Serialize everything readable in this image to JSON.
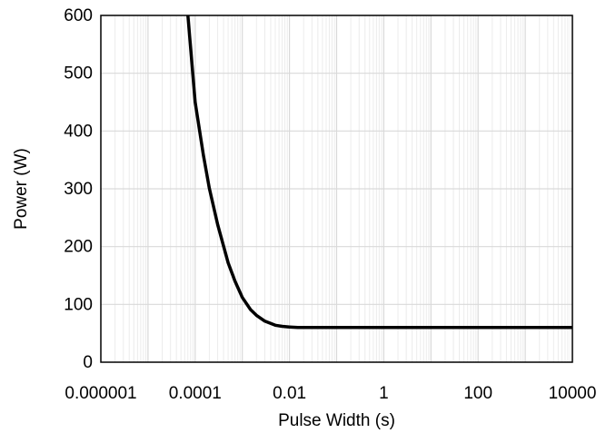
{
  "chart_data": {
    "type": "line",
    "xlabel": "Pulse Width (s)",
    "ylabel": "Power (W)",
    "xscale": "log",
    "xlim": [
      1e-06,
      10000
    ],
    "ylim": [
      0,
      600
    ],
    "x_ticks": [
      {
        "value": 1e-06,
        "label": "0.000001"
      },
      {
        "value": 0.0001,
        "label": "0.0001"
      },
      {
        "value": 0.01,
        "label": "0.01"
      },
      {
        "value": 1,
        "label": "1"
      },
      {
        "value": 100,
        "label": "100"
      },
      {
        "value": 10000,
        "label": "10000"
      }
    ],
    "y_ticks": [
      {
        "value": 0,
        "label": "0"
      },
      {
        "value": 100,
        "label": "100"
      },
      {
        "value": 200,
        "label": "200"
      },
      {
        "value": 300,
        "label": "300"
      },
      {
        "value": 400,
        "label": "400"
      },
      {
        "value": 500,
        "label": "500"
      },
      {
        "value": 600,
        "label": "600"
      }
    ],
    "grid": {
      "major": true,
      "minor_x": true
    },
    "colors": {
      "line": "#000000",
      "grid_major": "#d9d9d9",
      "grid_minor": "#ececec",
      "axis": "#000000"
    },
    "series": [
      {
        "x": [
          7e-05,
          0.0001,
          0.00015,
          0.0002,
          0.0003,
          0.0005,
          0.0007,
          0.001,
          0.0015,
          0.002,
          0.003,
          0.005,
          0.007,
          0.01,
          0.015,
          0.02,
          0.05,
          0.1,
          1,
          10,
          100,
          1000,
          10000
        ],
        "y": [
          600,
          450,
          358,
          301,
          238,
          172,
          140,
          112,
          91,
          81,
          71,
          64,
          62,
          61,
          60,
          60,
          60,
          60,
          60,
          60,
          60,
          60,
          60
        ]
      }
    ]
  }
}
